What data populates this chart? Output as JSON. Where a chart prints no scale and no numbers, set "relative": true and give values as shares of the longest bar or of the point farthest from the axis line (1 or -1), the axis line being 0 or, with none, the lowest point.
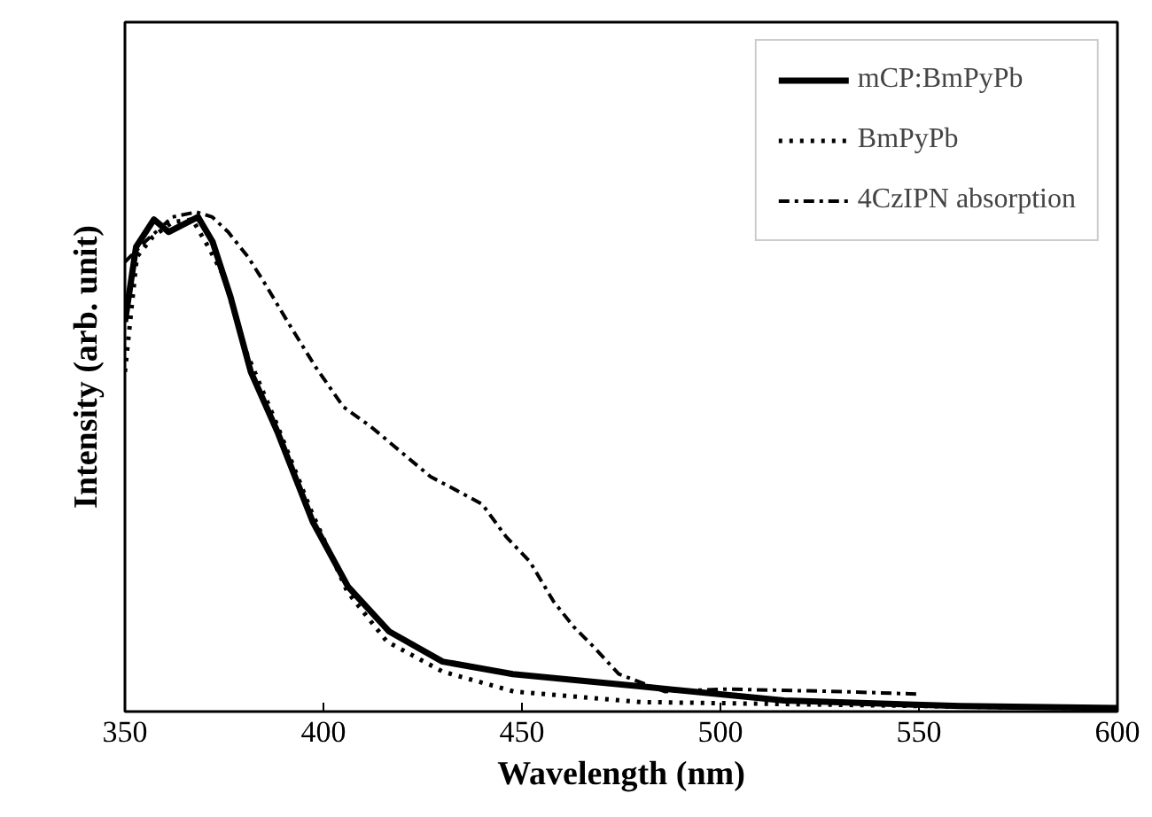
{
  "chart_data": {
    "type": "line",
    "relative": true,
    "xlabel": "Wavelength (nm)",
    "ylabel": "Intensity (arb. unit)",
    "xlim": [
      350,
      600
    ],
    "xticks": [
      350,
      400,
      450,
      500,
      550,
      600
    ],
    "grid": false,
    "legend": "top right",
    "marker": "none",
    "series": [
      {
        "name": "mCP:BmPyPb",
        "color": "#000000",
        "line_style": "solid",
        "x": [
          350,
          352.8,
          357.3,
          361,
          368.4,
          372.1,
          376.6,
          381.7,
          388.4,
          397.3,
          406.2,
          416.6,
          430,
          447.7,
          480.3,
          516,
          560.4,
          600
        ],
        "values": [
          0.78,
          0.93,
          0.985,
          0.96,
          0.99,
          0.94,
          0.83,
          0.68,
          0.56,
          0.38,
          0.25,
          0.16,
          0.1,
          0.075,
          0.05,
          0.022,
          0.011,
          0.007
        ]
      },
      {
        "name": "BmPyPb",
        "color": "#000000",
        "line_style": "dotted",
        "x": [
          350,
          353,
          357,
          362,
          367,
          371,
          375,
          380,
          388,
          397,
          406,
          416,
          430,
          448,
          480,
          516,
          560,
          600
        ],
        "values": [
          0.68,
          0.91,
          0.95,
          0.98,
          0.985,
          0.93,
          0.87,
          0.73,
          0.58,
          0.4,
          0.24,
          0.14,
          0.08,
          0.04,
          0.019,
          0.015,
          0.01,
          0.006
        ]
      },
      {
        "name": "4CzIPN absorption",
        "color": "#000000",
        "line_style": "dashdot",
        "x": [
          350,
          355,
          362,
          368,
          372,
          376,
          381,
          385,
          391,
          398,
          405,
          412,
          418,
          427,
          433,
          440,
          446,
          452,
          458,
          463,
          468,
          474.4,
          486,
          501,
          530.6,
          549.3
        ],
        "values": [
          0.9,
          0.94,
          0.99,
          1.0,
          0.99,
          0.96,
          0.91,
          0.86,
          0.78,
          0.69,
          0.61,
          0.57,
          0.53,
          0.47,
          0.445,
          0.415,
          0.35,
          0.3,
          0.22,
          0.17,
          0.13,
          0.075,
          0.04,
          0.045,
          0.04,
          0.035
        ]
      }
    ]
  }
}
